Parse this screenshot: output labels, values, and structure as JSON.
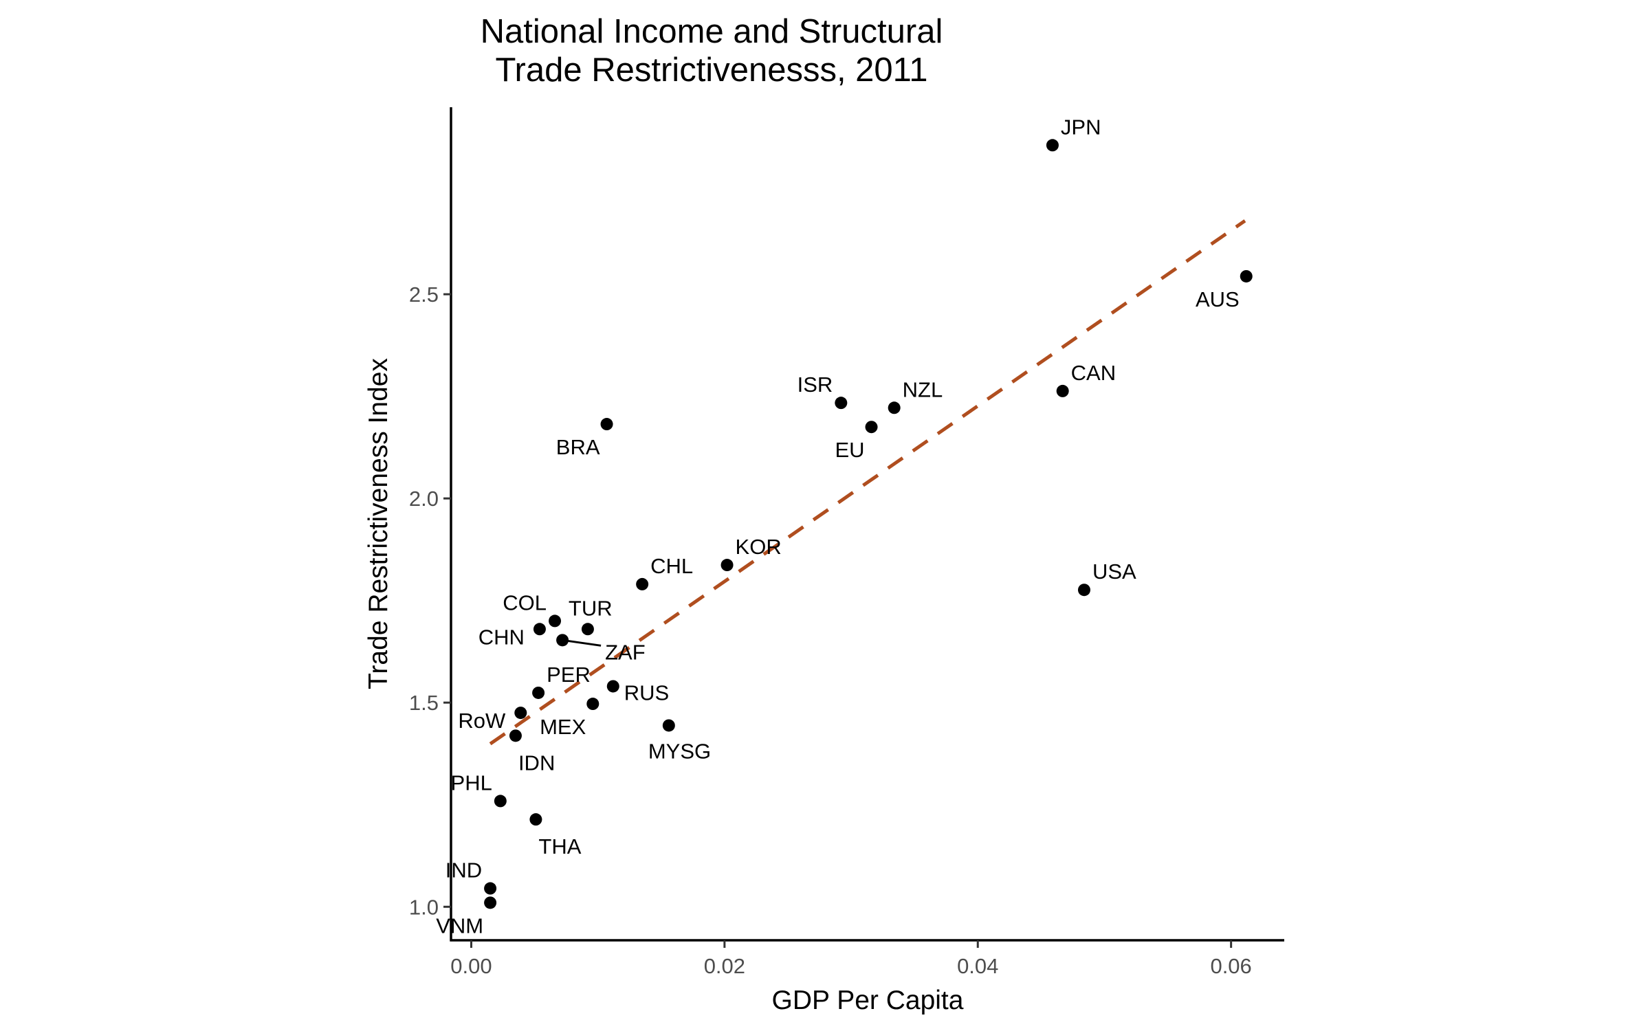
{
  "chart_data": {
    "type": "scatter",
    "title": "National Income and Structural\nTrade Restrictivenesss, 2011",
    "title_lines": [
      "National Income and Structural",
      "Trade Restrictivenesss, 2011"
    ],
    "xlabel": "GDP Per Capita",
    "ylabel": "Trade Restrictiveness Index",
    "xlim": [
      -0.0016,
      0.0642
    ],
    "ylim": [
      0.918,
      2.958
    ],
    "xticks": [
      0.0,
      0.02,
      0.04,
      0.06
    ],
    "xtick_labels": [
      "0.00",
      "0.02",
      "0.04",
      "0.06"
    ],
    "yticks": [
      1.0,
      1.5,
      2.0,
      2.5
    ],
    "ytick_labels": [
      "1.0",
      "1.5",
      "2.0",
      "2.5"
    ],
    "grid": false,
    "legend": "none",
    "point_color": "#000000",
    "trend_line": {
      "type": "linear fit",
      "style": "dashed",
      "color": "#b04e1f",
      "x": [
        0.0015,
        0.0611
      ],
      "y": [
        1.399,
        2.68
      ]
    },
    "points": [
      {
        "label": "JPN",
        "x": 0.0459,
        "y": 2.865,
        "label_pos": "top-right"
      },
      {
        "label": "AUS",
        "x": 0.0612,
        "y": 2.544,
        "label_pos": "bottom-left"
      },
      {
        "label": "CAN",
        "x": 0.0467,
        "y": 2.263,
        "label_pos": "top-right"
      },
      {
        "label": "ISR",
        "x": 0.0292,
        "y": 2.234,
        "label_pos": "top-left"
      },
      {
        "label": "NZL",
        "x": 0.0334,
        "y": 2.222,
        "label_pos": "top-right"
      },
      {
        "label": "EU",
        "x": 0.0316,
        "y": 2.175,
        "label_pos": "bottom-left"
      },
      {
        "label": "BRA",
        "x": 0.0107,
        "y": 2.182,
        "label_pos": "bottom-left"
      },
      {
        "label": "KOR",
        "x": 0.0202,
        "y": 1.837,
        "label_pos": "top-right"
      },
      {
        "label": "CHL",
        "x": 0.0135,
        "y": 1.79,
        "label_pos": "top-right"
      },
      {
        "label": "USA",
        "x": 0.0484,
        "y": 1.776,
        "label_pos": "top-right"
      },
      {
        "label": "COL",
        "x": 0.0066,
        "y": 1.7,
        "label_pos": "top-left"
      },
      {
        "label": "CHN",
        "x": 0.0054,
        "y": 1.68,
        "label_pos": "left"
      },
      {
        "label": "TUR",
        "x": 0.0092,
        "y": 1.68,
        "label_pos": "top"
      },
      {
        "label": "ZAF",
        "x": 0.0072,
        "y": 1.653,
        "label_pos": "right-segment"
      },
      {
        "label": "RUS",
        "x": 0.0112,
        "y": 1.54,
        "label_pos": "right"
      },
      {
        "label": "PER",
        "x": 0.0053,
        "y": 1.524,
        "label_pos": "top-right"
      },
      {
        "label": "MEX",
        "x": 0.0096,
        "y": 1.497,
        "label_pos": "bottom-left"
      },
      {
        "label": "RoW",
        "x": 0.0039,
        "y": 1.475,
        "label_pos": "left"
      },
      {
        "label": "MYSG",
        "x": 0.0156,
        "y": 1.444,
        "label_pos": "bottom"
      },
      {
        "label": "IDN",
        "x": 0.0035,
        "y": 1.419,
        "label_pos": "bottom-right"
      },
      {
        "label": "PHL",
        "x": 0.0023,
        "y": 1.259,
        "label_pos": "top-left"
      },
      {
        "label": "THA",
        "x": 0.0051,
        "y": 1.214,
        "label_pos": "bottom-right"
      },
      {
        "label": "IND",
        "x": 0.0015,
        "y": 1.045,
        "label_pos": "top-left"
      },
      {
        "label": "VNM",
        "x": 0.0015,
        "y": 1.01,
        "label_pos": "bottom-left"
      }
    ]
  }
}
